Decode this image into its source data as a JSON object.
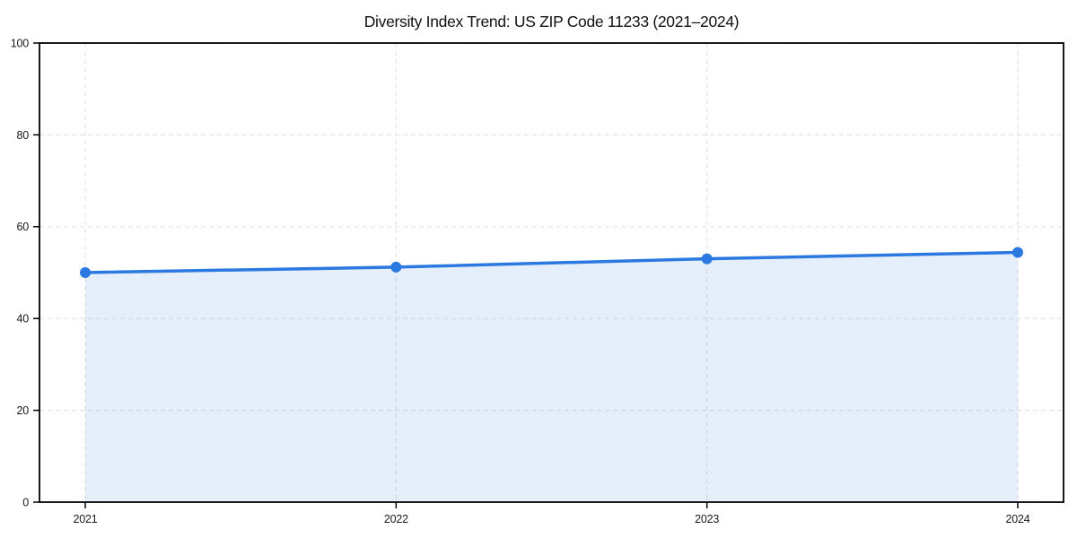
{
  "page": {
    "background_color": "#ffffff"
  },
  "chart_data": {
    "type": "line",
    "title": "Diversity Index Trend: US ZIP Code 11233 (2021–2024)",
    "xlabel": "",
    "ylabel": "",
    "x": [
      "2021",
      "2022",
      "2023",
      "2024"
    ],
    "series": [
      {
        "name": "Diversity Index",
        "values": [
          50,
          51.2,
          53,
          54.4
        ]
      }
    ],
    "ylim": [
      0,
      100
    ],
    "yticks": [
      0,
      20,
      40,
      60,
      80,
      100
    ],
    "grid": true,
    "grid_style": "dashed",
    "grid_color": "#e4e4e4",
    "legend_position": "none",
    "area_fill": true,
    "marker": "circle",
    "colors": {
      "line": "#2b78e0",
      "marker": "#2b78e0",
      "area_fill": "rgba(43,120,224,0.12)",
      "spine": "#000000",
      "text": "#1a1a1a"
    }
  }
}
